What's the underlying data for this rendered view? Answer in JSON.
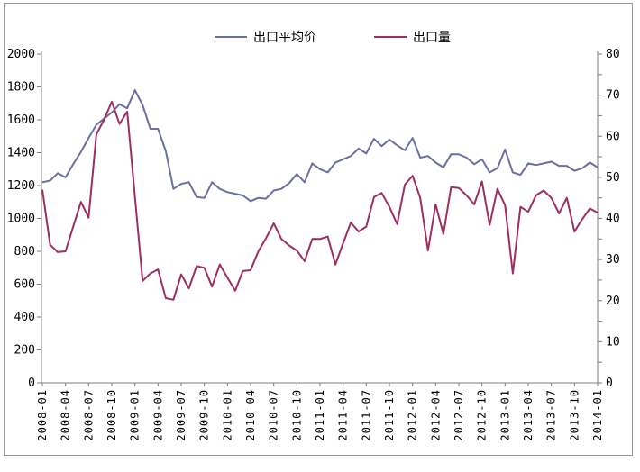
{
  "chart_data": {
    "type": "line",
    "title": "",
    "grid": false,
    "legend_position": "top-center",
    "x_tick_step": 3,
    "categories": [
      "2008-01",
      "2008-02",
      "2008-03",
      "2008-04",
      "2008-05",
      "2008-06",
      "2008-07",
      "2008-08",
      "2008-09",
      "2008-10",
      "2008-11",
      "2008-12",
      "2009-01",
      "2009-02",
      "2009-03",
      "2009-04",
      "2009-05",
      "2009-06",
      "2009-07",
      "2009-08",
      "2009-09",
      "2009-10",
      "2009-11",
      "2009-12",
      "2010-01",
      "2010-02",
      "2010-03",
      "2010-04",
      "2010-05",
      "2010-06",
      "2010-07",
      "2010-08",
      "2010-09",
      "2010-10",
      "2010-11",
      "2010-12",
      "2011-01",
      "2011-02",
      "2011-03",
      "2011-04",
      "2011-05",
      "2011-06",
      "2011-07",
      "2011-08",
      "2011-09",
      "2011-10",
      "2011-11",
      "2011-12",
      "2012-01",
      "2012-02",
      "2012-03",
      "2012-04",
      "2012-05",
      "2012-06",
      "2012-07",
      "2012-08",
      "2012-09",
      "2012-10",
      "2012-11",
      "2012-12",
      "2013-01",
      "2013-02",
      "2013-03",
      "2013-04",
      "2013-05",
      "2013-06",
      "2013-07",
      "2013-08",
      "2013-09",
      "2013-10",
      "2013-11",
      "2013-12",
      "2014-01"
    ],
    "series": [
      {
        "name": "出口平均价",
        "axis": "left",
        "color": "#6a70a0",
        "values": [
          1220,
          1230,
          1275,
          1250,
          1330,
          1405,
          1490,
          1570,
          1607,
          1645,
          1695,
          1670,
          1780,
          1690,
          1545,
          1545,
          1410,
          1180,
          1210,
          1220,
          1130,
          1125,
          1220,
          1180,
          1160,
          1150,
          1140,
          1105,
          1125,
          1120,
          1170,
          1180,
          1215,
          1270,
          1220,
          1335,
          1300,
          1280,
          1340,
          1360,
          1380,
          1425,
          1395,
          1485,
          1440,
          1480,
          1445,
          1415,
          1490,
          1370,
          1380,
          1340,
          1310,
          1390,
          1390,
          1370,
          1330,
          1360,
          1280,
          1305,
          1420,
          1280,
          1265,
          1335,
          1325,
          1335,
          1345,
          1320,
          1320,
          1290,
          1305,
          1340,
          1310
        ]
      },
      {
        "name": "出口量",
        "axis": "right",
        "color": "#9e2d62",
        "values": [
          47.0,
          33.6,
          31.8,
          32.0,
          38.0,
          44.0,
          40.2,
          60.5,
          64.0,
          68.4,
          63.0,
          66.0,
          45.2,
          24.8,
          26.6,
          27.6,
          20.6,
          20.2,
          26.4,
          23.0,
          28.4,
          28.0,
          23.4,
          28.8,
          25.6,
          22.4,
          27.2,
          27.4,
          32.0,
          35.2,
          38.8,
          35.0,
          33.4,
          32.2,
          29.6,
          35.0,
          35.0,
          35.6,
          28.8,
          34.0,
          39.0,
          36.8,
          38.0,
          45.2,
          46.2,
          42.8,
          38.6,
          48.2,
          50.4,
          45.0,
          32.2,
          43.4,
          36.2,
          47.6,
          47.4,
          45.6,
          43.4,
          49.0,
          38.4,
          47.2,
          43.2,
          26.6,
          42.8,
          41.6,
          45.6,
          46.8,
          45.0,
          41.2,
          45.0,
          36.8,
          39.8,
          42.4,
          41.4
        ]
      }
    ],
    "left_axis": {
      "min": 0,
      "max": 2000,
      "step": 200,
      "tick_labels": [
        "0",
        "200",
        "400",
        "600",
        "800",
        "1000",
        "1200",
        "1400",
        "1600",
        "1800",
        "2000"
      ]
    },
    "right_axis": {
      "min": 0,
      "max": 80,
      "step": 10,
      "minor_step": 5,
      "tick_labels": [
        "0",
        "10",
        "20",
        "30",
        "40",
        "50",
        "60",
        "70",
        "80"
      ]
    },
    "x_tick_labels": [
      "2008-01",
      "2008-04",
      "2008-07",
      "2008-10",
      "2009-01",
      "2009-04",
      "2009-07",
      "2009-10",
      "2010-01",
      "2010-04",
      "2010-07",
      "2010-10",
      "2011-01",
      "2011-04",
      "2011-07",
      "2011-10",
      "2012-01",
      "2012-04",
      "2012-07",
      "2012-10",
      "2013-01",
      "2013-04",
      "2013-07",
      "2013-10",
      "2014-01"
    ],
    "axis_color": "#7f7f7f",
    "label_color": "#000000"
  }
}
